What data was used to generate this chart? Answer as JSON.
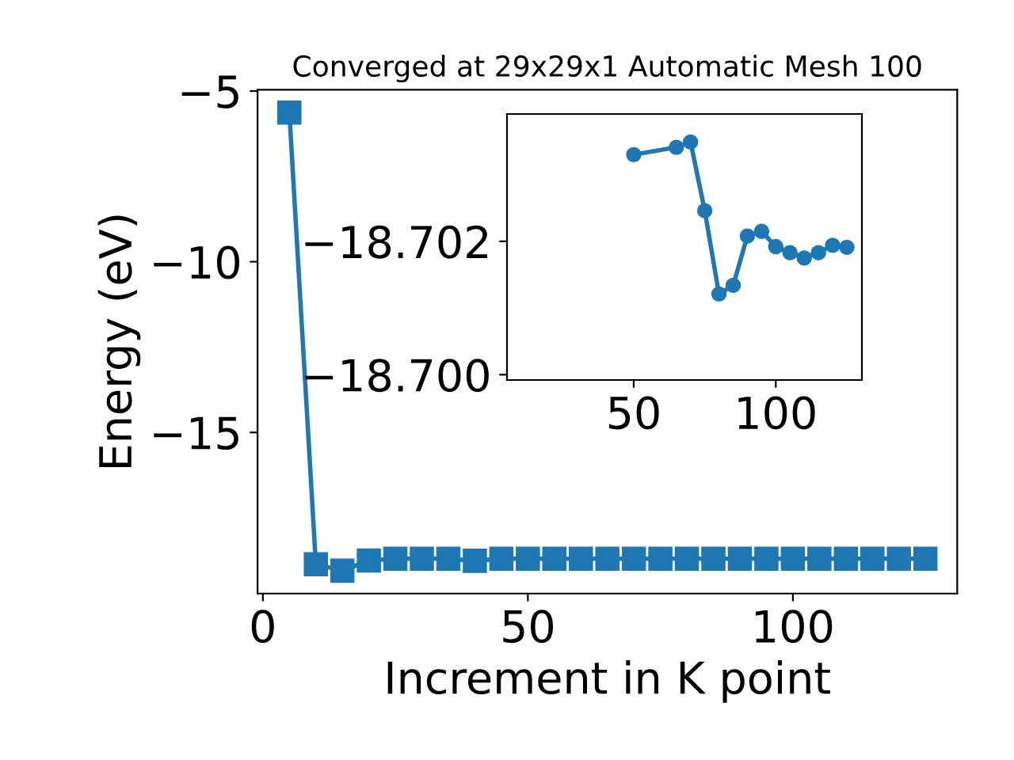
{
  "chart_data": [
    {
      "type": "line",
      "title": "Converged at 29x29x1 Automatic Mesh 100",
      "xlabel": "Increment in K point",
      "ylabel": "Energy (eV)",
      "x": [
        5,
        10,
        15,
        20,
        25,
        30,
        35,
        40,
        45,
        50,
        55,
        60,
        65,
        70,
        75,
        80,
        85,
        90,
        95,
        100,
        105,
        110,
        115,
        120,
        125
      ],
      "series": [
        {
          "color": "#1f77b4",
          "values": [
            -5.63,
            -18.86,
            -19.05,
            -18.75,
            -18.7,
            -18.7,
            -18.7,
            -18.76,
            -18.7,
            -18.7,
            -18.7,
            -18.7,
            -18.7,
            -18.7,
            -18.7,
            -18.7,
            -18.7,
            -18.7,
            -18.7,
            -18.7,
            -18.7,
            -18.7,
            -18.7,
            -18.7,
            -18.7
          ]
        }
      ],
      "marker": "square",
      "line_style": "solid",
      "grid": false,
      "legend": false,
      "xlim": [
        -1,
        131
      ],
      "ylim": [
        -19.72,
        -4.96
      ],
      "xticks": [
        0,
        50,
        100
      ],
      "yticks": [
        {
          "value": -5,
          "label": "−5"
        },
        {
          "value": -10,
          "label": "−10"
        },
        {
          "value": -15,
          "label": "−15"
        }
      ]
    },
    {
      "type": "line",
      "x": [
        50,
        65,
        70,
        75,
        80,
        85,
        90,
        95,
        100,
        105,
        110,
        115,
        120,
        125
      ],
      "series": [
        {
          "color": "#1f77b4",
          "values": [
            -18.7033,
            -18.70341,
            -18.70349,
            -18.70246,
            -18.70121,
            -18.70134,
            -18.70208,
            -18.70215,
            -18.70192,
            -18.70183,
            -18.70175,
            -18.70183,
            -18.70194,
            -18.70191
          ]
        }
      ],
      "marker": "circle",
      "line_style": "solid",
      "grid": false,
      "legend": false,
      "xlim": [
        5.4,
        130.3
      ],
      "ylim": [
        -18.69992,
        -18.70391
      ],
      "xticks": [
        50,
        100
      ],
      "yticks": [
        {
          "value": -18.702,
          "label": "−18.702"
        },
        {
          "value": -18.7,
          "label": "−18.700"
        }
      ]
    }
  ]
}
